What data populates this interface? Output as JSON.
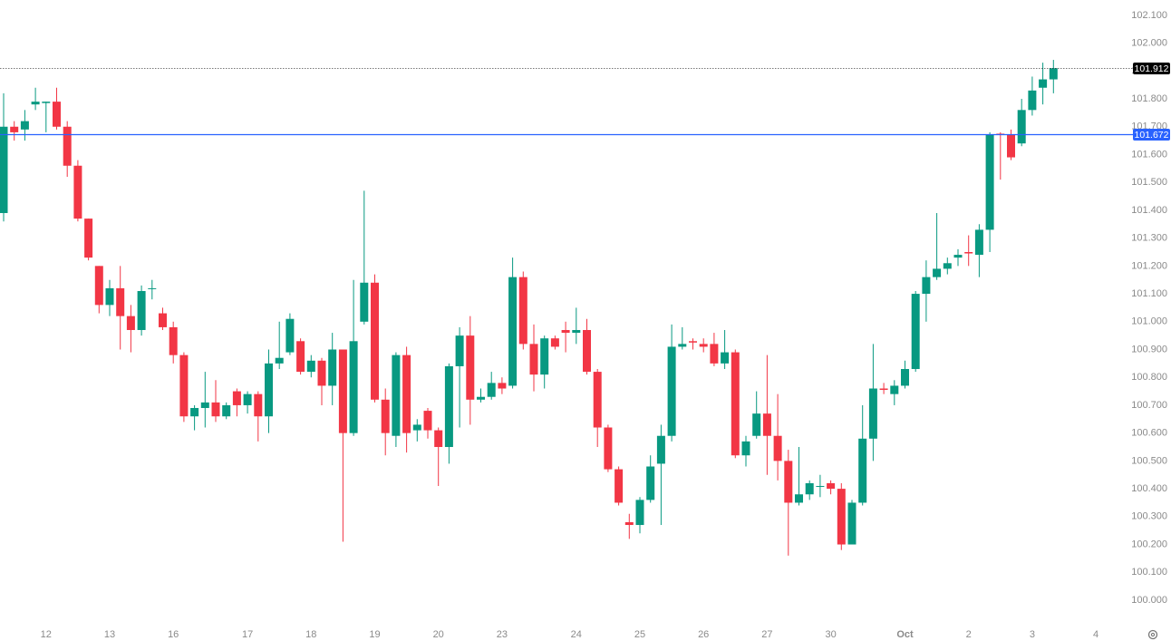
{
  "chart_data": {
    "type": "candlestick",
    "categories": [
      null,
      null,
      null,
      null,
      "12",
      null,
      null,
      null,
      null,
      null,
      "13",
      null,
      null,
      null,
      null,
      null,
      "16",
      null,
      null,
      null,
      null,
      null,
      null,
      "17",
      null,
      null,
      null,
      null,
      null,
      "18",
      null,
      null,
      null,
      null,
      null,
      "19",
      null,
      null,
      null,
      null,
      null,
      "20",
      null,
      null,
      null,
      null,
      null,
      "23",
      null,
      null,
      null,
      null,
      null,
      null,
      "24",
      null,
      null,
      null,
      null,
      null,
      "25",
      null,
      null,
      null,
      null,
      null,
      "26",
      null,
      null,
      null,
      null,
      null,
      "27",
      null,
      null,
      null,
      null,
      null,
      "30",
      null,
      null,
      null,
      null,
      null,
      null,
      "Oct",
      null,
      null,
      null,
      null,
      null,
      "2",
      null,
      null,
      null,
      null,
      null,
      "3",
      null,
      null,
      null,
      null,
      null,
      "4"
    ],
    "open": [
      101.39,
      101.7,
      101.69,
      101.78,
      101.785,
      101.79,
      101.7,
      101.56,
      101.37,
      101.2,
      101.06,
      101.12,
      101.02,
      100.97,
      101.12,
      101.03,
      100.98,
      100.88,
      100.66,
      100.69,
      100.71,
      100.66,
      100.75,
      100.7,
      100.74,
      100.66,
      100.85,
      100.89,
      100.93,
      100.82,
      100.86,
      100.77,
      100.9,
      100.6,
      101.0,
      101.14,
      100.72,
      100.59,
      100.88,
      100.61,
      100.68,
      100.61,
      100.55,
      100.84,
      100.95,
      100.72,
      100.73,
      100.78,
      100.77,
      101.16,
      100.92,
      100.81,
      100.94,
      100.97,
      100.96,
      100.97,
      100.82,
      100.62,
      100.47,
      100.28,
      100.27,
      100.36,
      100.49,
      100.59,
      100.91,
      100.93,
      100.92,
      100.92,
      100.85,
      100.89,
      100.52,
      100.59,
      100.67,
      100.59,
      100.5,
      100.35,
      100.38,
      100.41,
      100.42,
      100.4,
      100.2,
      100.35,
      100.58,
      100.76,
      100.74,
      100.77,
      100.83,
      101.1,
      101.16,
      101.19,
      101.23,
      101.25,
      101.24,
      101.33,
      101.675,
      101.67,
      101.64,
      101.76,
      101.84,
      101.87,
      null,
      null,
      null,
      null
    ],
    "high": [
      101.82,
      101.72,
      101.76,
      101.84,
      101.79,
      101.84,
      101.72,
      101.58,
      101.37,
      101.2,
      101.15,
      101.2,
      101.06,
      101.13,
      101.15,
      101.05,
      101.0,
      100.89,
      100.7,
      100.82,
      100.79,
      100.71,
      100.76,
      100.75,
      100.75,
      100.9,
      101.0,
      101.03,
      100.94,
      100.88,
      100.87,
      100.96,
      100.9,
      101.15,
      101.47,
      101.17,
      100.76,
      100.89,
      100.91,
      100.65,
      100.69,
      100.62,
      100.85,
      100.98,
      101.02,
      100.76,
      100.82,
      100.8,
      101.23,
      101.18,
      100.99,
      100.95,
      100.95,
      101.0,
      101.05,
      101.01,
      100.83,
      100.63,
      100.48,
      100.31,
      100.37,
      100.52,
      100.63,
      100.99,
      100.98,
      100.94,
      100.94,
      100.96,
      100.97,
      100.9,
      100.59,
      100.75,
      100.88,
      100.74,
      100.54,
      100.55,
      100.43,
      100.45,
      100.43,
      100.42,
      100.36,
      100.7,
      100.92,
      100.78,
      100.79,
      100.86,
      101.11,
      101.22,
      101.39,
      101.23,
      101.26,
      101.31,
      101.35,
      101.68,
      101.68,
      101.69,
      101.8,
      101.88,
      101.93,
      101.94,
      null,
      null,
      null,
      null
    ],
    "low": [
      101.36,
      101.65,
      101.65,
      101.76,
      101.68,
      101.69,
      101.52,
      101.36,
      101.22,
      101.03,
      101.02,
      100.9,
      100.89,
      100.95,
      101.08,
      100.97,
      100.85,
      100.64,
      100.61,
      100.62,
      100.64,
      100.65,
      100.66,
      100.67,
      100.57,
      100.6,
      100.83,
      100.88,
      100.81,
      100.8,
      100.7,
      100.7,
      100.21,
      100.59,
      100.99,
      100.71,
      100.52,
      100.55,
      100.53,
      100.57,
      100.58,
      100.41,
      100.49,
      100.62,
      100.63,
      100.71,
      100.72,
      100.74,
      100.76,
      100.9,
      100.75,
      100.76,
      100.9,
      100.89,
      100.92,
      100.81,
      100.55,
      100.46,
      100.34,
      100.22,
      100.24,
      100.35,
      100.27,
      100.57,
      100.9,
      100.9,
      100.89,
      100.84,
      100.83,
      100.51,
      100.48,
      100.58,
      100.45,
      100.43,
      100.16,
      100.34,
      100.36,
      100.37,
      100.38,
      100.18,
      100.2,
      100.34,
      100.5,
      100.74,
      100.7,
      100.76,
      100.82,
      101.0,
      101.15,
      101.17,
      101.2,
      101.2,
      101.16,
      101.25,
      101.51,
      101.58,
      101.63,
      101.74,
      101.78,
      101.82,
      null,
      null,
      null,
      null
    ],
    "close": [
      101.7,
      101.68,
      101.72,
      101.79,
      101.79,
      101.7,
      101.56,
      101.37,
      101.23,
      101.06,
      101.12,
      101.02,
      100.97,
      101.11,
      101.12,
      100.98,
      100.88,
      100.66,
      100.69,
      100.71,
      100.66,
      100.7,
      100.7,
      100.74,
      100.66,
      100.85,
      100.87,
      101.01,
      100.82,
      100.86,
      100.77,
      100.9,
      100.6,
      100.93,
      101.14,
      100.72,
      100.6,
      100.88,
      100.6,
      100.63,
      100.61,
      100.55,
      100.84,
      100.95,
      100.72,
      100.73,
      100.78,
      100.76,
      101.16,
      100.92,
      100.81,
      100.94,
      100.91,
      100.96,
      100.97,
      100.82,
      100.62,
      100.47,
      100.35,
      100.27,
      100.36,
      100.48,
      100.59,
      100.91,
      100.92,
      100.925,
      100.91,
      100.85,
      100.89,
      100.52,
      100.57,
      100.67,
      100.59,
      100.5,
      100.35,
      100.38,
      100.42,
      100.41,
      100.4,
      100.2,
      100.35,
      100.58,
      100.76,
      100.755,
      100.77,
      100.83,
      101.1,
      101.16,
      101.19,
      101.21,
      101.24,
      101.245,
      101.33,
      101.67,
      101.67,
      101.59,
      101.76,
      101.83,
      101.87,
      101.91,
      null,
      null,
      null,
      null
    ],
    "up_color": "#089981",
    "down_color": "#f23645",
    "ylim": [
      99.925,
      102.155
    ],
    "yticks": [
      {
        "value": 100.0,
        "label": "100.000"
      },
      {
        "value": 100.1,
        "label": "100.100"
      },
      {
        "value": 100.2,
        "label": "100.200"
      },
      {
        "value": 100.3,
        "label": "100.300"
      },
      {
        "value": 100.4,
        "label": "100.400"
      },
      {
        "value": 100.5,
        "label": "100.500"
      },
      {
        "value": 100.6,
        "label": "100.600"
      },
      {
        "value": 100.7,
        "label": "100.700"
      },
      {
        "value": 100.8,
        "label": "100.800"
      },
      {
        "value": 100.9,
        "label": "100.900"
      },
      {
        "value": 101.0,
        "label": "101.000"
      },
      {
        "value": 101.1,
        "label": "101.100"
      },
      {
        "value": 101.2,
        "label": "101.200"
      },
      {
        "value": 101.3,
        "label": "101.300"
      },
      {
        "value": 101.4,
        "label": "101.400"
      },
      {
        "value": 101.5,
        "label": "101.500"
      },
      {
        "value": 101.6,
        "label": "101.600"
      },
      {
        "value": 101.7,
        "label": "101.700"
      },
      {
        "value": 101.8,
        "label": "101.800"
      },
      {
        "value": 101.9,
        "label": "101.900"
      },
      {
        "value": 102.0,
        "label": "102.000"
      },
      {
        "value": 102.1,
        "label": "102.100"
      }
    ],
    "price_lines": [
      {
        "value": 101.912,
        "color": "#000000",
        "dotted": true
      },
      {
        "value": 101.672,
        "color": "#2962ff",
        "dotted": false
      }
    ],
    "grid": false
  }
}
